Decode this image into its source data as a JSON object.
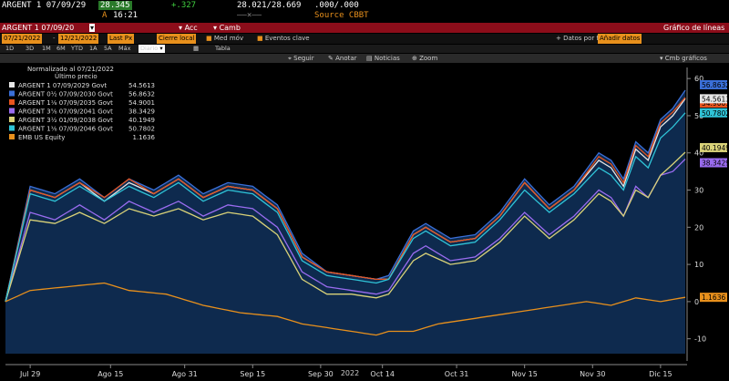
{
  "header": {
    "security": "ARGENT 1 07/09/29",
    "last_price": "28.345",
    "change": "+.327",
    "bid_ask": "28.021/28.669",
    "sizes": ".000/.000",
    "a_label": "A",
    "time": "16:21",
    "sep": "——×——",
    "source": "Source CBBT"
  },
  "redbar": {
    "security_field": "ARGENT 1 07/09/20",
    "acc": "Acc",
    "camb": "Camb",
    "title": "Gráfico de líneas"
  },
  "controls": {
    "start_date": "07/21/2022",
    "end_date": "12/21/2022",
    "last_px": "Last Px",
    "close": "Cierre local",
    "med_mov": "Med móv",
    "eventos": "Eventos clave",
    "datos_por": "Datos por fe",
    "anadir": "Añadir datos"
  },
  "ranges": [
    "1D",
    "3D",
    "1M",
    "6M",
    "YTD",
    "1A",
    "5A",
    "Máx"
  ],
  "frequency": "Diario",
  "tabla": "Tabla",
  "toolbar": {
    "seguir": "Seguir",
    "anotar": "Anotar",
    "noticias": "Noticias",
    "zoom": "Zoom",
    "cmb": "Cmb gráficos"
  },
  "chart_data": {
    "type": "line",
    "xlabel": "2022",
    "ylabel": "",
    "ylim": [
      -14,
      62
    ],
    "y_ticks": [
      -10,
      0,
      10,
      20,
      30,
      40,
      50,
      60
    ],
    "x_ticks": [
      "Jul 29",
      "Ago 15",
      "Ago 31",
      "Sep 15",
      "Sep 30",
      "Oct 14",
      "Oct 31",
      "Nov 15",
      "Nov 30",
      "Dic 15"
    ],
    "x_tick_index": [
      4,
      17,
      29,
      40,
      51,
      61,
      73,
      84,
      95,
      106
    ],
    "x_count": 112,
    "legend": {
      "title": "Normalizado al 07/21/2022",
      "subtitle": "Último precio",
      "placement": "top-left"
    },
    "grid": false,
    "series": [
      {
        "name": "ARGENT 1 07/09/2029 Govt",
        "last": "54.5613",
        "color": "#e6e6e6",
        "keys": [
          [
            0,
            0
          ],
          [
            4,
            30
          ],
          [
            8,
            28
          ],
          [
            12,
            32
          ],
          [
            16,
            27
          ],
          [
            20,
            32
          ],
          [
            24,
            29
          ],
          [
            28,
            33
          ],
          [
            32,
            28
          ],
          [
            36,
            31
          ],
          [
            40,
            30
          ],
          [
            44,
            25
          ],
          [
            48,
            12
          ],
          [
            52,
            8
          ],
          [
            56,
            7
          ],
          [
            60,
            6
          ],
          [
            62,
            6
          ],
          [
            66,
            18
          ],
          [
            68,
            20
          ],
          [
            72,
            16
          ],
          [
            76,
            17
          ],
          [
            80,
            23
          ],
          [
            84,
            32
          ],
          [
            88,
            25
          ],
          [
            92,
            30
          ],
          [
            96,
            38
          ],
          [
            98,
            36
          ],
          [
            100,
            31
          ],
          [
            102,
            41
          ],
          [
            104,
            38
          ],
          [
            106,
            47
          ],
          [
            108,
            50
          ],
          [
            110,
            54.56
          ]
        ]
      },
      {
        "name": "ARGENT 0½ 07/09/2030 Govt",
        "last": "56.8632",
        "color": "#3a6fd8",
        "keys": [
          [
            0,
            0
          ],
          [
            4,
            31
          ],
          [
            8,
            29
          ],
          [
            12,
            33
          ],
          [
            16,
            28
          ],
          [
            20,
            33
          ],
          [
            24,
            30
          ],
          [
            28,
            34
          ],
          [
            32,
            29
          ],
          [
            36,
            32
          ],
          [
            40,
            31
          ],
          [
            44,
            26
          ],
          [
            48,
            13
          ],
          [
            52,
            8
          ],
          [
            56,
            7
          ],
          [
            60,
            6
          ],
          [
            62,
            7
          ],
          [
            66,
            19
          ],
          [
            68,
            21
          ],
          [
            72,
            17
          ],
          [
            76,
            18
          ],
          [
            80,
            24
          ],
          [
            84,
            33
          ],
          [
            88,
            26
          ],
          [
            92,
            31
          ],
          [
            96,
            40
          ],
          [
            98,
            38
          ],
          [
            100,
            33
          ],
          [
            102,
            43
          ],
          [
            104,
            40
          ],
          [
            106,
            49
          ],
          [
            108,
            52
          ],
          [
            110,
            56.86
          ]
        ]
      },
      {
        "name": "ARGENT 1⅛ 07/09/2035 Govt",
        "last": "54.9001",
        "color": "#e8541e",
        "keys": [
          [
            0,
            0
          ],
          [
            4,
            30
          ],
          [
            8,
            28
          ],
          [
            12,
            32
          ],
          [
            16,
            28
          ],
          [
            20,
            33
          ],
          [
            24,
            29
          ],
          [
            28,
            33
          ],
          [
            32,
            28
          ],
          [
            36,
            31
          ],
          [
            40,
            30
          ],
          [
            44,
            25
          ],
          [
            48,
            12
          ],
          [
            52,
            8
          ],
          [
            56,
            7
          ],
          [
            60,
            6
          ],
          [
            62,
            6
          ],
          [
            66,
            18
          ],
          [
            68,
            20
          ],
          [
            72,
            16
          ],
          [
            76,
            17
          ],
          [
            80,
            23
          ],
          [
            84,
            32
          ],
          [
            88,
            25
          ],
          [
            92,
            30
          ],
          [
            96,
            39
          ],
          [
            98,
            37
          ],
          [
            100,
            32
          ],
          [
            102,
            42
          ],
          [
            104,
            39
          ],
          [
            106,
            48
          ],
          [
            108,
            51
          ],
          [
            110,
            54.9
          ]
        ]
      },
      {
        "name": "ARGENT 3⅝ 07/09/2041 Govt",
        "last": "38.3429",
        "color": "#9a6cf0",
        "keys": [
          [
            0,
            0
          ],
          [
            4,
            24
          ],
          [
            8,
            22
          ],
          [
            12,
            26
          ],
          [
            16,
            22
          ],
          [
            20,
            27
          ],
          [
            24,
            24
          ],
          [
            28,
            27
          ],
          [
            32,
            23
          ],
          [
            36,
            26
          ],
          [
            40,
            25
          ],
          [
            44,
            20
          ],
          [
            48,
            8
          ],
          [
            52,
            4
          ],
          [
            56,
            3
          ],
          [
            60,
            2
          ],
          [
            62,
            3
          ],
          [
            66,
            13
          ],
          [
            68,
            15
          ],
          [
            72,
            11
          ],
          [
            76,
            12
          ],
          [
            80,
            17
          ],
          [
            84,
            24
          ],
          [
            88,
            18
          ],
          [
            92,
            23
          ],
          [
            96,
            30
          ],
          [
            98,
            28
          ],
          [
            100,
            23
          ],
          [
            102,
            31
          ],
          [
            104,
            28
          ],
          [
            106,
            34
          ],
          [
            108,
            35
          ],
          [
            110,
            38.34
          ]
        ]
      },
      {
        "name": "ARGENT 3½ 01/09/2038 Govt",
        "last": "40.1949",
        "color": "#d9d278",
        "keys": [
          [
            0,
            0
          ],
          [
            4,
            22
          ],
          [
            8,
            21
          ],
          [
            12,
            24
          ],
          [
            16,
            21
          ],
          [
            20,
            25
          ],
          [
            24,
            23
          ],
          [
            28,
            25
          ],
          [
            32,
            22
          ],
          [
            36,
            24
          ],
          [
            40,
            23
          ],
          [
            44,
            18
          ],
          [
            48,
            6
          ],
          [
            52,
            2
          ],
          [
            56,
            2
          ],
          [
            60,
            1
          ],
          [
            62,
            2
          ],
          [
            66,
            11
          ],
          [
            68,
            13
          ],
          [
            72,
            10
          ],
          [
            76,
            11
          ],
          [
            80,
            16
          ],
          [
            84,
            23
          ],
          [
            88,
            17
          ],
          [
            92,
            22
          ],
          [
            96,
            29
          ],
          [
            98,
            27
          ],
          [
            100,
            23
          ],
          [
            102,
            30
          ],
          [
            104,
            28
          ],
          [
            106,
            34
          ],
          [
            108,
            37
          ],
          [
            110,
            40.19
          ]
        ]
      },
      {
        "name": "ARGENT 1⅛ 07/09/2046 Govt",
        "last": "50.7802",
        "color": "#2fc4d8",
        "keys": [
          [
            0,
            0
          ],
          [
            4,
            29
          ],
          [
            8,
            27
          ],
          [
            12,
            31
          ],
          [
            16,
            27
          ],
          [
            20,
            31
          ],
          [
            24,
            28
          ],
          [
            28,
            32
          ],
          [
            32,
            27
          ],
          [
            36,
            30
          ],
          [
            40,
            29
          ],
          [
            44,
            24
          ],
          [
            48,
            11
          ],
          [
            52,
            7
          ],
          [
            56,
            6
          ],
          [
            60,
            5
          ],
          [
            62,
            6
          ],
          [
            66,
            17
          ],
          [
            68,
            19
          ],
          [
            72,
            15
          ],
          [
            76,
            16
          ],
          [
            80,
            22
          ],
          [
            84,
            30
          ],
          [
            88,
            24
          ],
          [
            92,
            29
          ],
          [
            96,
            36
          ],
          [
            98,
            34
          ],
          [
            100,
            30
          ],
          [
            102,
            39
          ],
          [
            104,
            36
          ],
          [
            106,
            44
          ],
          [
            108,
            47
          ],
          [
            110,
            50.78
          ]
        ]
      },
      {
        "name": "EMB US Equity",
        "last": "1.1636",
        "color": "#e8901c",
        "keys": [
          [
            0,
            0
          ],
          [
            4,
            3
          ],
          [
            10,
            4
          ],
          [
            16,
            5
          ],
          [
            20,
            3
          ],
          [
            26,
            2
          ],
          [
            32,
            -1
          ],
          [
            38,
            -3
          ],
          [
            44,
            -4
          ],
          [
            48,
            -6
          ],
          [
            52,
            -7
          ],
          [
            56,
            -8
          ],
          [
            60,
            -9
          ],
          [
            62,
            -8
          ],
          [
            66,
            -8
          ],
          [
            70,
            -6
          ],
          [
            74,
            -5
          ],
          [
            78,
            -4
          ],
          [
            82,
            -3
          ],
          [
            86,
            -2
          ],
          [
            90,
            -1
          ],
          [
            94,
            0
          ],
          [
            98,
            -1
          ],
          [
            102,
            1
          ],
          [
            106,
            0
          ],
          [
            110,
            1.16
          ]
        ]
      }
    ]
  }
}
